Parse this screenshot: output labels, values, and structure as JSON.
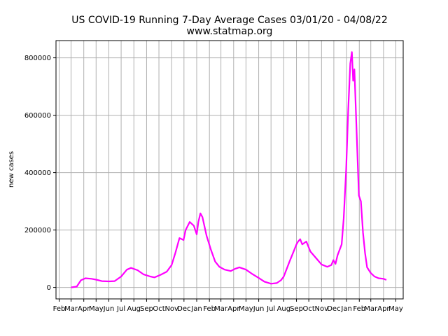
{
  "chart_data": {
    "type": "line",
    "title": "US COVID-19 Running 7-Day Average Cases 03/01/20 - 04/08/22",
    "subtitle": "www.statmap.org",
    "xlabel": "",
    "ylabel": "new cases",
    "grid": true,
    "ylim": [
      -40000,
      860000
    ],
    "yticks": [
      0,
      200000,
      400000,
      600000,
      800000
    ],
    "ytick_labels": [
      "0",
      "200000",
      "400000",
      "600000",
      "800000"
    ],
    "xtick_labels": [
      "Feb",
      "Mar",
      "Apr",
      "May",
      "Jun",
      "Jul",
      "Aug",
      "Sep",
      "Oct",
      "Nov",
      "Dec",
      "Jan",
      "Feb",
      "Mar",
      "Apr",
      "May",
      "Jun",
      "Jul",
      "Aug",
      "Sep",
      "Oct",
      "Nov",
      "Dec",
      "Jan",
      "Feb",
      "Mar",
      "Apr",
      "May"
    ],
    "series": [
      {
        "color": "#ff00ff",
        "x": [
          "2020-03-01",
          "2020-03-15",
          "2020-03-25",
          "2020-04-05",
          "2020-04-20",
          "2020-05-01",
          "2020-05-15",
          "2020-06-01",
          "2020-06-15",
          "2020-07-01",
          "2020-07-15",
          "2020-07-25",
          "2020-08-10",
          "2020-08-25",
          "2020-09-10",
          "2020-09-20",
          "2020-10-05",
          "2020-10-20",
          "2020-11-01",
          "2020-11-10",
          "2020-11-20",
          "2020-11-30",
          "2020-12-05",
          "2020-12-15",
          "2020-12-25",
          "2021-01-01",
          "2021-01-05",
          "2021-01-10",
          "2021-01-15",
          "2021-01-25",
          "2021-02-05",
          "2021-02-15",
          "2021-02-25",
          "2021-03-10",
          "2021-03-25",
          "2021-04-05",
          "2021-04-15",
          "2021-05-01",
          "2021-05-15",
          "2021-06-01",
          "2021-06-15",
          "2021-07-01",
          "2021-07-15",
          "2021-07-25",
          "2021-08-01",
          "2021-08-15",
          "2021-08-25",
          "2021-09-01",
          "2021-09-05",
          "2021-09-10",
          "2021-09-15",
          "2021-09-25",
          "2021-10-05",
          "2021-10-20",
          "2021-11-01",
          "2021-11-15",
          "2021-11-25",
          "2021-11-30",
          "2021-12-05",
          "2021-12-10",
          "2021-12-20",
          "2021-12-25",
          "2021-12-31",
          "2022-01-05",
          "2022-01-10",
          "2022-01-14",
          "2022-01-17",
          "2022-01-20",
          "2022-01-25",
          "2022-01-31",
          "2022-02-05",
          "2022-02-10",
          "2022-02-15",
          "2022-02-20",
          "2022-03-01",
          "2022-03-10",
          "2022-03-20",
          "2022-04-01",
          "2022-04-08"
        ],
        "y": [
          0,
          3000,
          25000,
          32000,
          30000,
          27000,
          22000,
          21000,
          22000,
          38000,
          62000,
          68000,
          60000,
          45000,
          38000,
          35000,
          44000,
          55000,
          78000,
          120000,
          172000,
          165000,
          200000,
          228000,
          215000,
          185000,
          228000,
          258000,
          245000,
          180000,
          130000,
          90000,
          72000,
          62000,
          57000,
          65000,
          70000,
          62000,
          48000,
          33000,
          20000,
          13000,
          15000,
          25000,
          38000,
          90000,
          125000,
          150000,
          160000,
          168000,
          150000,
          160000,
          125000,
          100000,
          80000,
          72000,
          78000,
          95000,
          82000,
          112000,
          150000,
          240000,
          410000,
          620000,
          780000,
          820000,
          720000,
          760000,
          560000,
          320000,
          300000,
          190000,
          120000,
          70000,
          50000,
          38000,
          32000,
          30000,
          26000
        ]
      }
    ]
  }
}
